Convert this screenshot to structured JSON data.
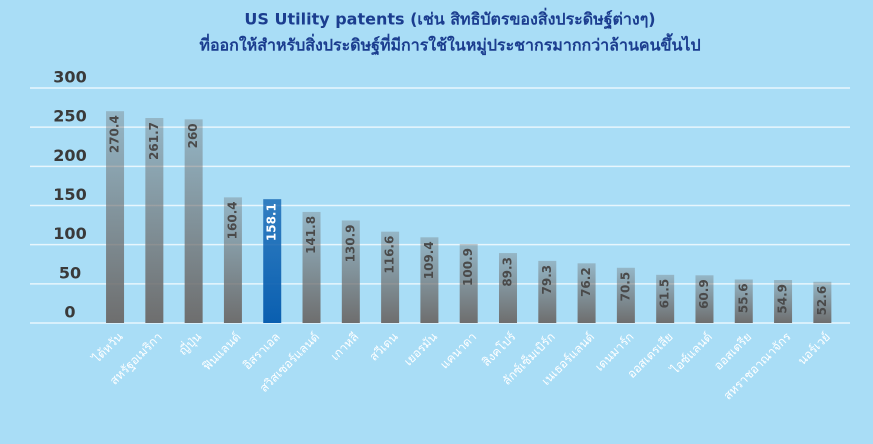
{
  "chart_data": {
    "type": "bar",
    "title": [
      "US Utility patents (เช่น สิทธิบัตรของสิ่งประดิษฐ์ต่างๆ)",
      "ที่ออกให้สำหรับสิ่งประดิษฐ์ที่มีการใช้ในหมู่ประชากรมากกว่าล้านคนขึ้นไป"
    ],
    "categories": [
      "ไต้หวัน",
      "สหรัฐอเมริกา",
      "ญี่ปุ่น",
      "ฟินแลนด์",
      "อิสราเอล",
      "สวิสเซอร์แลนด์",
      "เกาหลี",
      "สวีเดน",
      "เยอรมัน",
      "แคนาดา",
      "สิงคโปร์",
      "ลักซ์เซ็มเบิร์ก",
      "เนเธอร์แลนด์",
      "เดนมาร์ก",
      "ออสเตรเลีย",
      "ไอซ์แลนด์",
      "ออสเตรีย",
      "สหราชอาณาจักร",
      "นอร์เวย์"
    ],
    "values": [
      270.4,
      261.7,
      260,
      160.4,
      158.1,
      141.8,
      130.9,
      116.6,
      109.4,
      100.9,
      89.3,
      79.3,
      76.2,
      70.5,
      61.5,
      60.9,
      55.6,
      54.9,
      52.6
    ],
    "colors": [
      "#6e6e6e",
      "#6e6e6e",
      "#6e6e6e",
      "#6e6e6e",
      "#0a5fb0",
      "#6e6e6e",
      "#6e6e6e",
      "#6e6e6e",
      "#6e6e6e",
      "#6e6e6e",
      "#6e6e6e",
      "#6e6e6e",
      "#6e6e6e",
      "#6e6e6e",
      "#6e6e6e",
      "#6e6e6e",
      "#6e6e6e",
      "#6e6e6e",
      "#6e6e6e"
    ],
    "ylim": [
      0,
      300
    ],
    "yticks": [
      0,
      50,
      100,
      150,
      200,
      250,
      300
    ],
    "grid": true
  }
}
